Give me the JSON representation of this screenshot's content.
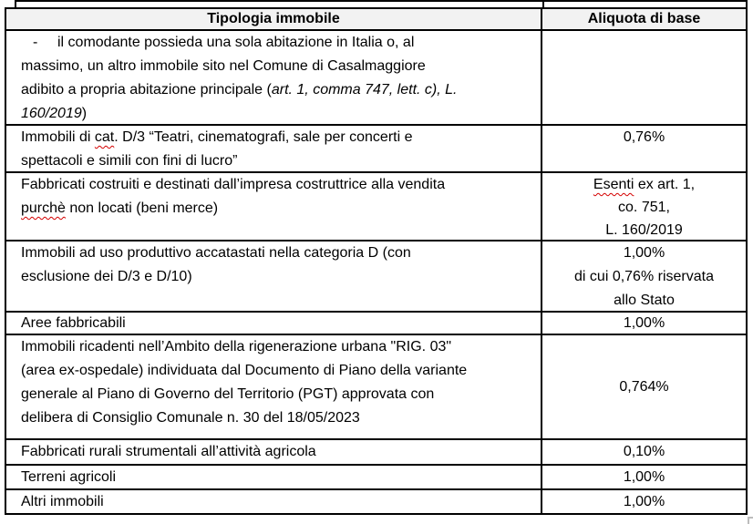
{
  "colors": {
    "header_bg": "#f2f2f2",
    "border": "#000000",
    "squiggle_red": "#d40000",
    "resize_handle_gray": "#bdbdbd"
  },
  "table": {
    "header": {
      "tipologia": "Tipologia immobile",
      "aliquota": "Aliquota di base"
    },
    "rows": {
      "comodato": {
        "dash": "-",
        "line1": "il comodante possieda una sola abitazione in Italia o, al",
        "line2": "massimo, un altro immobile sito nel Comune di Casalmaggiore",
        "line3_pre": "adibito a propria abitazione principale (",
        "line3_italic": "art. 1, comma 747, lett. c), L.",
        "line4_italic": "160/2019",
        "line4_post": ")",
        "aliquota": ""
      },
      "teatri": {
        "line1_pre": "Immobili di ",
        "line1_misspelled": "cat",
        "line1_post": ". D/3 “Teatri, cinematografi, sale per concerti e",
        "line2": "spettacoli e simili con fini di lucro”",
        "aliquota": "0,76%"
      },
      "beni_merce": {
        "line1": "Fabbricati costruiti e destinati dall’impresa costruttrice alla vendita",
        "line2_misspelled": "purchè",
        "line2_post": " non locati (beni merce)",
        "aliquota_line1_misspelled": "Esenti",
        "aliquota_line1_post": " ex art. 1,",
        "aliquota_line2": "co. 751,",
        "aliquota_line3": "L. 160/2019"
      },
      "categoria_d": {
        "line1": "Immobili ad uso produttivo accatastati nella categoria D (con",
        "line2": "esclusione dei D/3 e D/10)",
        "aliquota_line1": "1,00%",
        "aliquota_line2": "di cui 0,76% riservata",
        "aliquota_line3": "allo Stato"
      },
      "aree_fabbricabili": {
        "tipologia": "Aree fabbricabili",
        "aliquota": "1,00%"
      },
      "rigenerazione": {
        "line1": "Immobili ricadenti nell’Ambito della rigenerazione urbana \"RIG. 03\"",
        "line2": "(area ex-ospedale) individuata dal Documento di Piano della variante",
        "line3": "generale al Piano di Governo del Territorio (PGT) approvata con",
        "line4": "delibera di Consiglio Comunale n. 30 del 18/05/2023",
        "aliquota": "0,764%"
      },
      "fabbricati_rurali": {
        "tipologia": "Fabbricati rurali strumentali all’attività agricola",
        "aliquota": "0,10%"
      },
      "terreni_agricoli": {
        "tipologia": "Terreni agricoli",
        "aliquota": "1,00%"
      },
      "altri_immobili": {
        "tipologia": "Altri immobili",
        "aliquota": "1,00%"
      }
    }
  }
}
